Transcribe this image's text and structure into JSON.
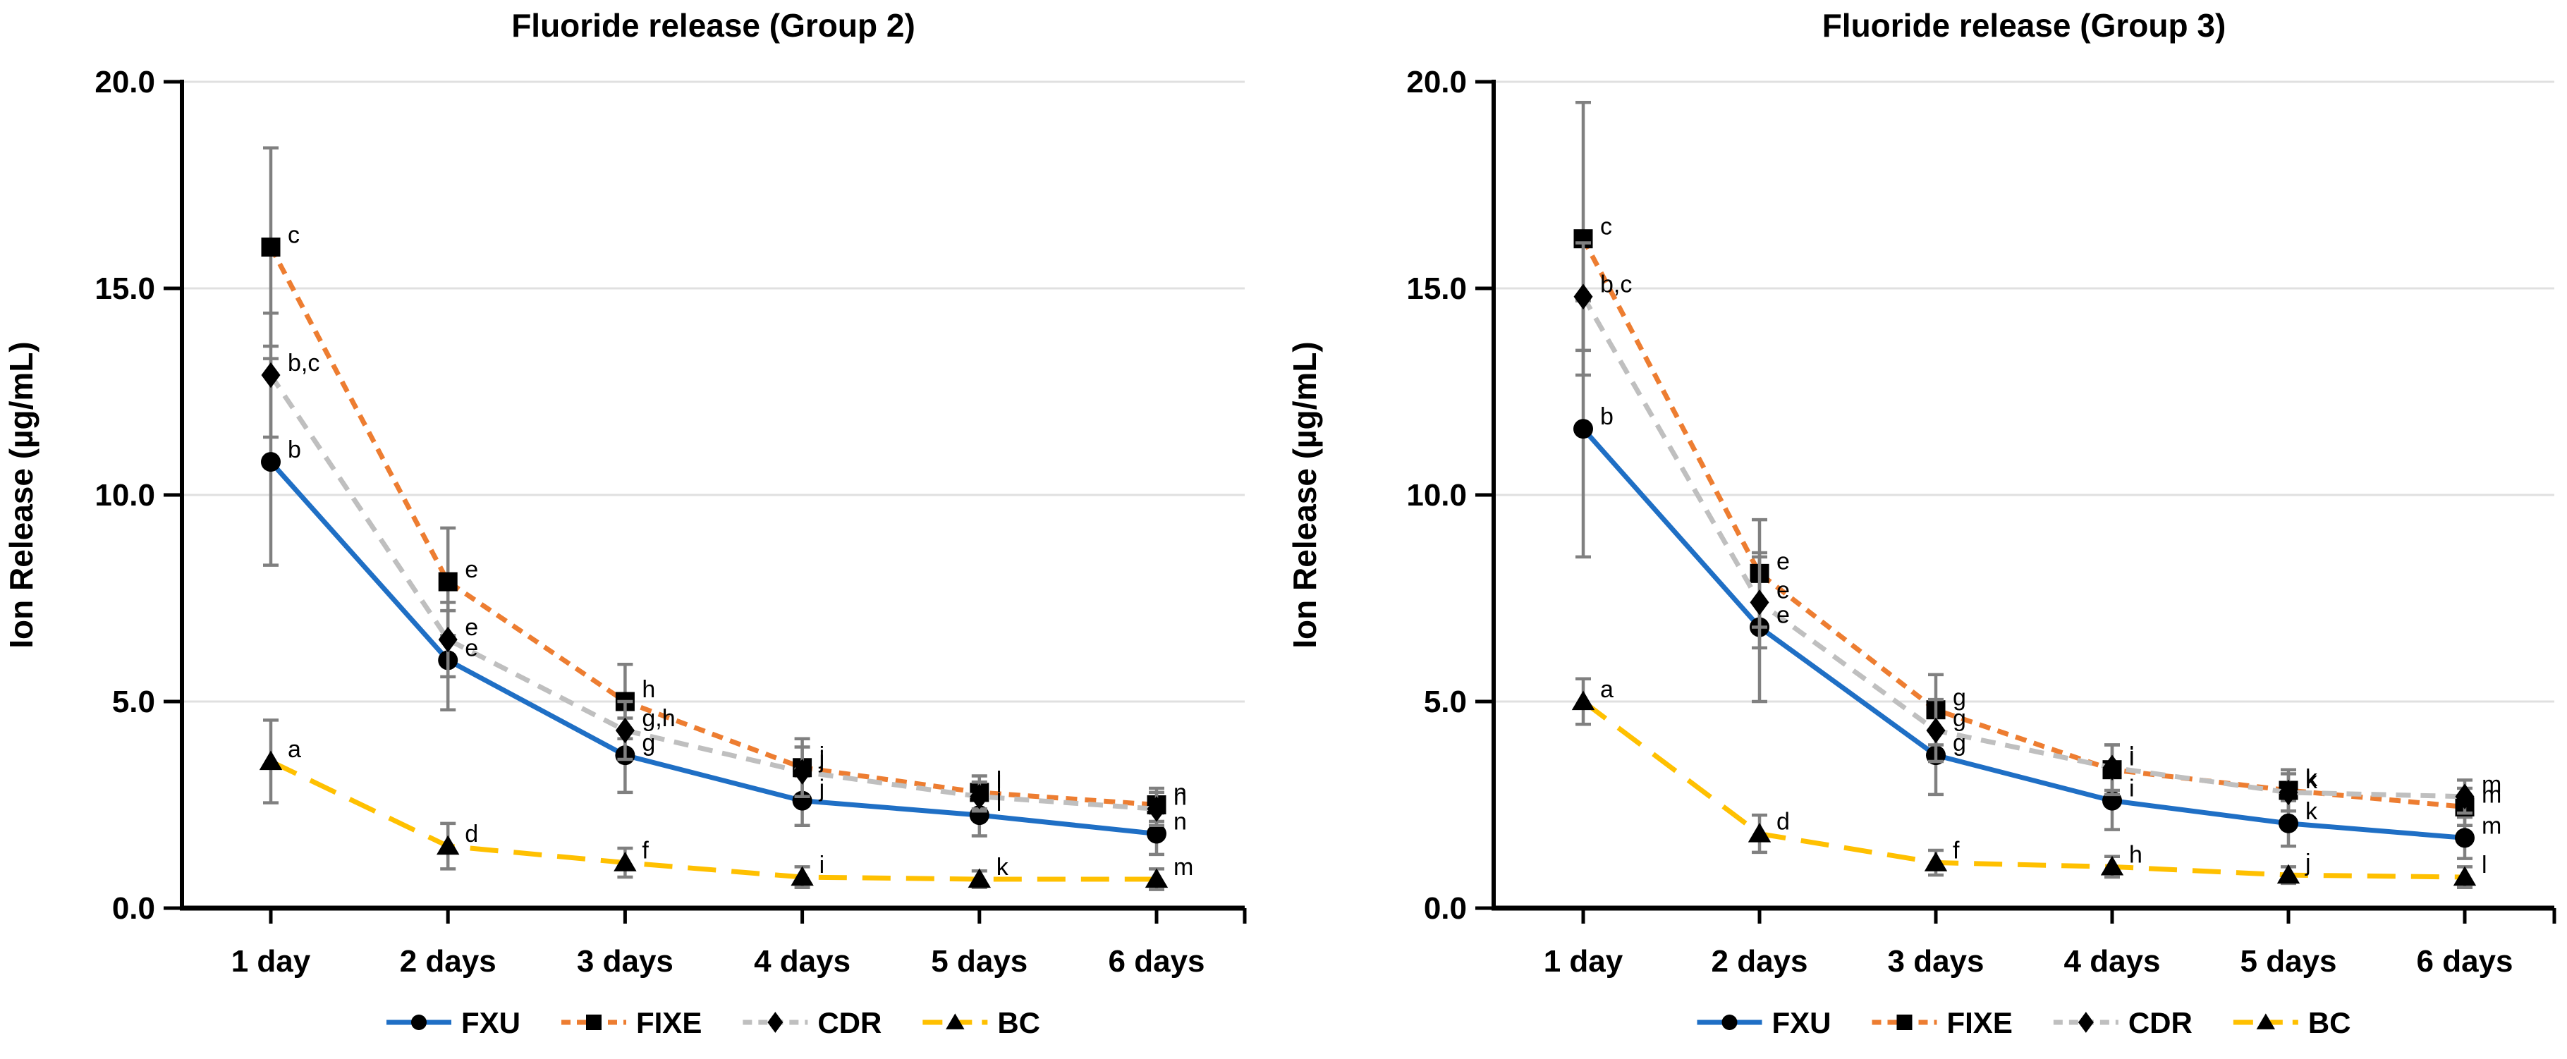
{
  "page": {
    "background": "#FFFFFF"
  },
  "chart_data": [
    {
      "type": "line",
      "title": "Fluoride release (Group 2)",
      "xlabel": "",
      "ylabel": "Ion Release (µg/mL)",
      "ylim": [
        0,
        20
      ],
      "y_tick_step": 5,
      "y_tick_labels": [
        "0.0",
        "5.0",
        "10.0",
        "15.0",
        "20.0"
      ],
      "categories": [
        "1 day",
        "2 days",
        "3 days",
        "4 days",
        "5 days",
        "6 days"
      ],
      "grid": "horizontal-only",
      "gridline_color": "#E0E0E0",
      "axis_color": "#000000",
      "error_bar_color": "#808080",
      "legend_position": "bottom",
      "series": [
        {
          "name": "FXU",
          "color": "#1F6FC5",
          "dash": "solid",
          "marker": "circle",
          "marker_color": "#000000",
          "values": [
            10.8,
            6.0,
            3.7,
            2.6,
            2.25,
            1.8
          ],
          "error": [
            2.5,
            1.2,
            0.9,
            0.6,
            0.5,
            0.5
          ],
          "point_labels": [
            "b",
            "e",
            "g",
            "j",
            "l",
            "n"
          ]
        },
        {
          "name": "FIXE",
          "color": "#ED7D31",
          "dash": "dash",
          "marker": "square",
          "marker_color": "#000000",
          "values": [
            16.0,
            7.9,
            5.0,
            3.4,
            2.8,
            2.5
          ],
          "error": [
            2.4,
            1.3,
            0.9,
            0.7,
            0.4,
            0.4
          ],
          "point_labels": [
            "c",
            "e",
            "h",
            "j",
            "l",
            "n"
          ]
        },
        {
          "name": "CDR",
          "color": "#BFBFBF",
          "dash": "meddash",
          "marker": "diamond",
          "marker_color": "#000000",
          "values": [
            12.9,
            6.5,
            4.3,
            3.3,
            2.7,
            2.4
          ],
          "error": [
            1.5,
            0.9,
            0.7,
            0.6,
            0.35,
            0.4
          ],
          "point_labels": [
            "b,c",
            "e",
            "g,h",
            "j",
            "l",
            "n"
          ]
        },
        {
          "name": "BC",
          "color": "#FFC000",
          "dash": "longdash",
          "marker": "triangle",
          "marker_color": "#000000",
          "values": [
            3.55,
            1.5,
            1.1,
            0.75,
            0.7,
            0.7
          ],
          "error": [
            1.0,
            0.55,
            0.35,
            0.25,
            0.2,
            0.25
          ],
          "point_labels": [
            "a",
            "d",
            "f",
            "i",
            "k",
            "m"
          ]
        }
      ]
    },
    {
      "type": "line",
      "title": "Fluoride release (Group 3)",
      "xlabel": "",
      "ylabel": "Ion Release (µg/mL)",
      "ylim": [
        0,
        20
      ],
      "y_tick_step": 5,
      "y_tick_labels": [
        "0.0",
        "5.0",
        "10.0",
        "15.0",
        "20.0"
      ],
      "categories": [
        "1 day",
        "2 days",
        "3 days",
        "4 days",
        "5 days",
        "6 days"
      ],
      "grid": "horizontal-only",
      "gridline_color": "#E0E0E0",
      "axis_color": "#000000",
      "error_bar_color": "#808080",
      "legend_position": "bottom",
      "series": [
        {
          "name": "FXU",
          "color": "#1F6FC5",
          "dash": "solid",
          "marker": "circle",
          "marker_color": "#000000",
          "values": [
            11.6,
            6.8,
            3.7,
            2.6,
            2.05,
            1.7
          ],
          "error": [
            3.1,
            1.8,
            0.95,
            0.7,
            0.55,
            0.5
          ],
          "point_labels": [
            "b",
            "e",
            "g",
            "i",
            "k",
            "m"
          ]
        },
        {
          "name": "FIXE",
          "color": "#ED7D31",
          "dash": "dash",
          "marker": "square",
          "marker_color": "#000000",
          "values": [
            16.2,
            8.1,
            4.8,
            3.35,
            2.85,
            2.45
          ],
          "error": [
            3.3,
            1.3,
            0.85,
            0.6,
            0.5,
            0.45
          ],
          "point_labels": [
            "c",
            "e",
            "g",
            "i",
            "k",
            "m"
          ]
        },
        {
          "name": "CDR",
          "color": "#BFBFBF",
          "dash": "meddash",
          "marker": "diamond",
          "marker_color": "#000000",
          "values": [
            14.8,
            7.4,
            4.3,
            3.4,
            2.8,
            2.7
          ],
          "error": [
            1.3,
            1.1,
            0.75,
            0.55,
            0.45,
            0.4
          ],
          "point_labels": [
            "b,c",
            "e",
            "g",
            "i",
            "k",
            "m"
          ]
        },
        {
          "name": "BC",
          "color": "#FFC000",
          "dash": "longdash",
          "marker": "triangle",
          "marker_color": "#000000",
          "values": [
            5.0,
            1.8,
            1.1,
            1.0,
            0.8,
            0.75
          ],
          "error": [
            0.55,
            0.45,
            0.3,
            0.25,
            0.2,
            0.25
          ],
          "point_labels": [
            "a",
            "d",
            "f",
            "h",
            "j",
            "l"
          ]
        }
      ]
    }
  ]
}
